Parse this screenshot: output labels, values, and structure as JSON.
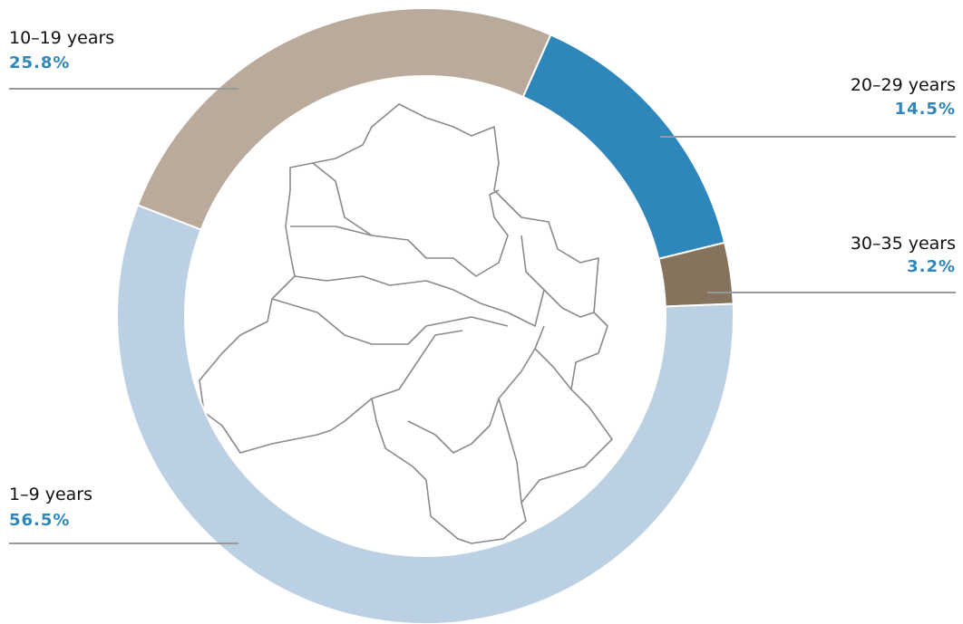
{
  "chart_data": {
    "type": "donut",
    "categories": [
      "20–29 years",
      "30–35 years",
      "1–9 years",
      "10–19 years"
    ],
    "values": [
      14.5,
      3.2,
      56.5,
      25.8
    ],
    "value_labels": [
      "14.5%",
      "3.2%",
      "56.5%",
      "25.8%"
    ],
    "colors": [
      "#2e86bb",
      "#85735d",
      "#bcd0e4",
      "#b9aa9c"
    ]
  }
}
